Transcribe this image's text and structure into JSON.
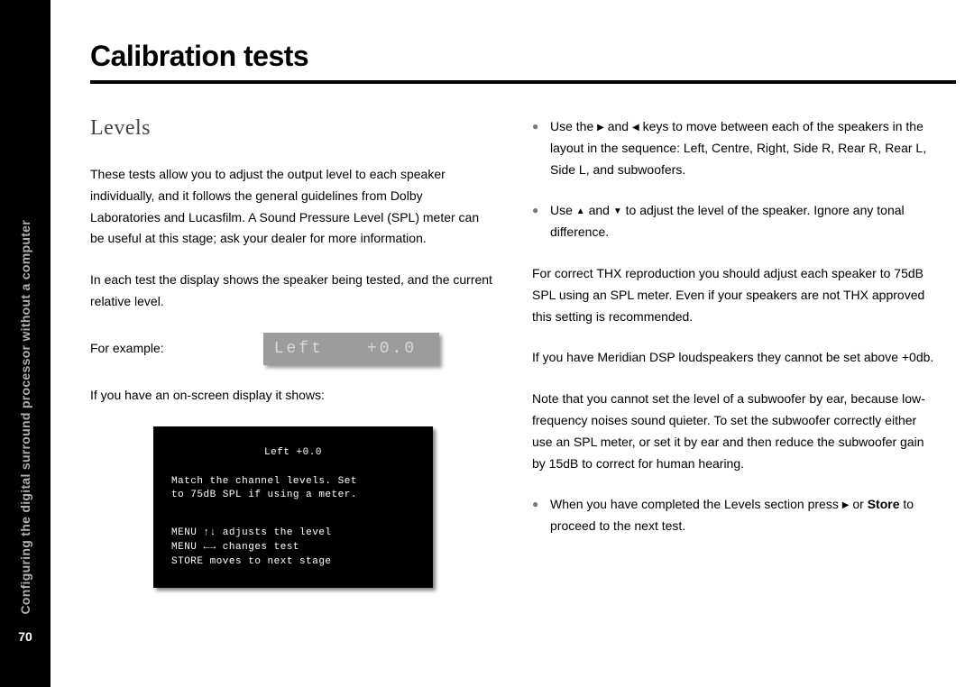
{
  "sidebar": {
    "label": "Configuring the digital surround processor without a computer",
    "page_number": "70"
  },
  "title": "Calibration tests",
  "left_col": {
    "heading": "Levels",
    "p1": "These tests allow you to adjust the output level to each speaker individually, and it follows the general guidelines from Dolby Laboratories and Lucasfilm. A Sound Pressure Level (SPL) meter can be useful at this stage; ask your dealer for more information.",
    "p2": "In each test the display shows the speaker being tested, and the current relative level.",
    "p3": "For example:",
    "lcd_left": "Left",
    "lcd_right": "+0.0",
    "p4": "If you have an on-screen display it shows:",
    "osd": {
      "title": "Left   +0.0",
      "line1": "Match the channel levels. Set",
      "line2": "to 75dB SPL if using a meter.",
      "line3": "MENU ↑↓ adjusts the level",
      "line4": "MENU ←→ changes test",
      "line5": "STORE moves to next stage"
    }
  },
  "right_col": {
    "b1a": "Use the ",
    "b1b": " and ",
    "b1c": " keys to move between each of the speakers in the layout in the sequence: Left, Centre, Right, Side R, Rear R, Rear L, Side L, and subwoofers.",
    "b2a": "Use ",
    "b2b": " and ",
    "b2c": " to adjust the level of the speaker. Ignore any tonal difference.",
    "p1": "For correct THX reproduction you should adjust each speaker to 75dB SPL using an SPL meter. Even if your speakers are not THX approved this setting is recommended.",
    "p2": "If you have Meridian DSP loudspeakers they cannot be set above +0db.",
    "p3": "Note that you cannot set the level of a subwoofer by ear, because low-frequency noises sound quieter. To set the subwoofer correctly either use an SPL meter, or set it by ear and then reduce the subwoofer gain by 15dB to correct for human hearing.",
    "b3a": "When you have completed the Levels section press ",
    "b3b": " or ",
    "b3c": "Store",
    "b3d": " to proceed to the next test."
  }
}
